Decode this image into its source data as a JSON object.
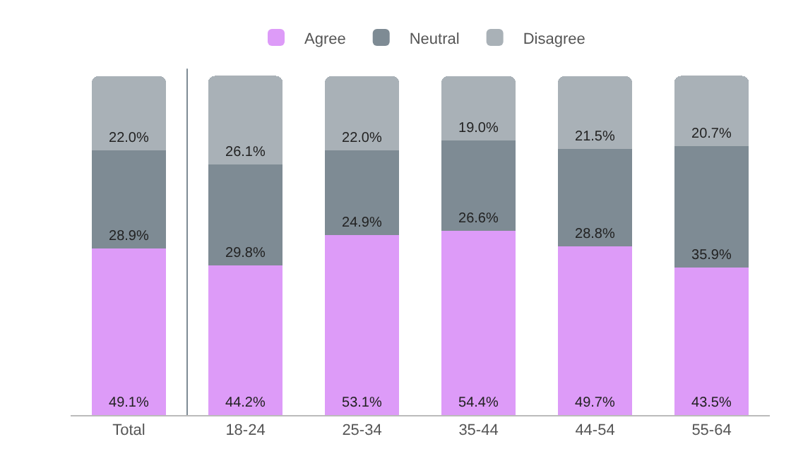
{
  "chart_data": {
    "type": "bar",
    "stacked": true,
    "legend": "top",
    "categories": [
      "Total",
      "18-24",
      "25-34",
      "35-44",
      "44-54",
      "55-64"
    ],
    "series": [
      {
        "name": "Agree",
        "color": "#dd9bf8",
        "values": [
          49.1,
          44.2,
          53.1,
          54.4,
          49.7,
          43.5
        ],
        "value_labels": [
          "49.1%",
          "44.2%",
          "53.1%",
          "54.4%",
          "49.7%",
          "43.5%"
        ]
      },
      {
        "name": "Neutral",
        "color": "#7e8b94",
        "values": [
          28.9,
          29.8,
          24.9,
          26.6,
          28.8,
          35.9
        ],
        "value_labels": [
          "28.9%",
          "29.8%",
          "24.9%",
          "26.6%",
          "28.8%",
          "35.9%"
        ]
      },
      {
        "name": "Disagree",
        "color": "#a9b1b7",
        "values": [
          22.0,
          26.1,
          22.0,
          19.0,
          21.5,
          20.7
        ],
        "value_labels": [
          "22.0%",
          "26.1%",
          "22.0%",
          "19.0%",
          "21.5%",
          "20.7%"
        ]
      }
    ]
  }
}
